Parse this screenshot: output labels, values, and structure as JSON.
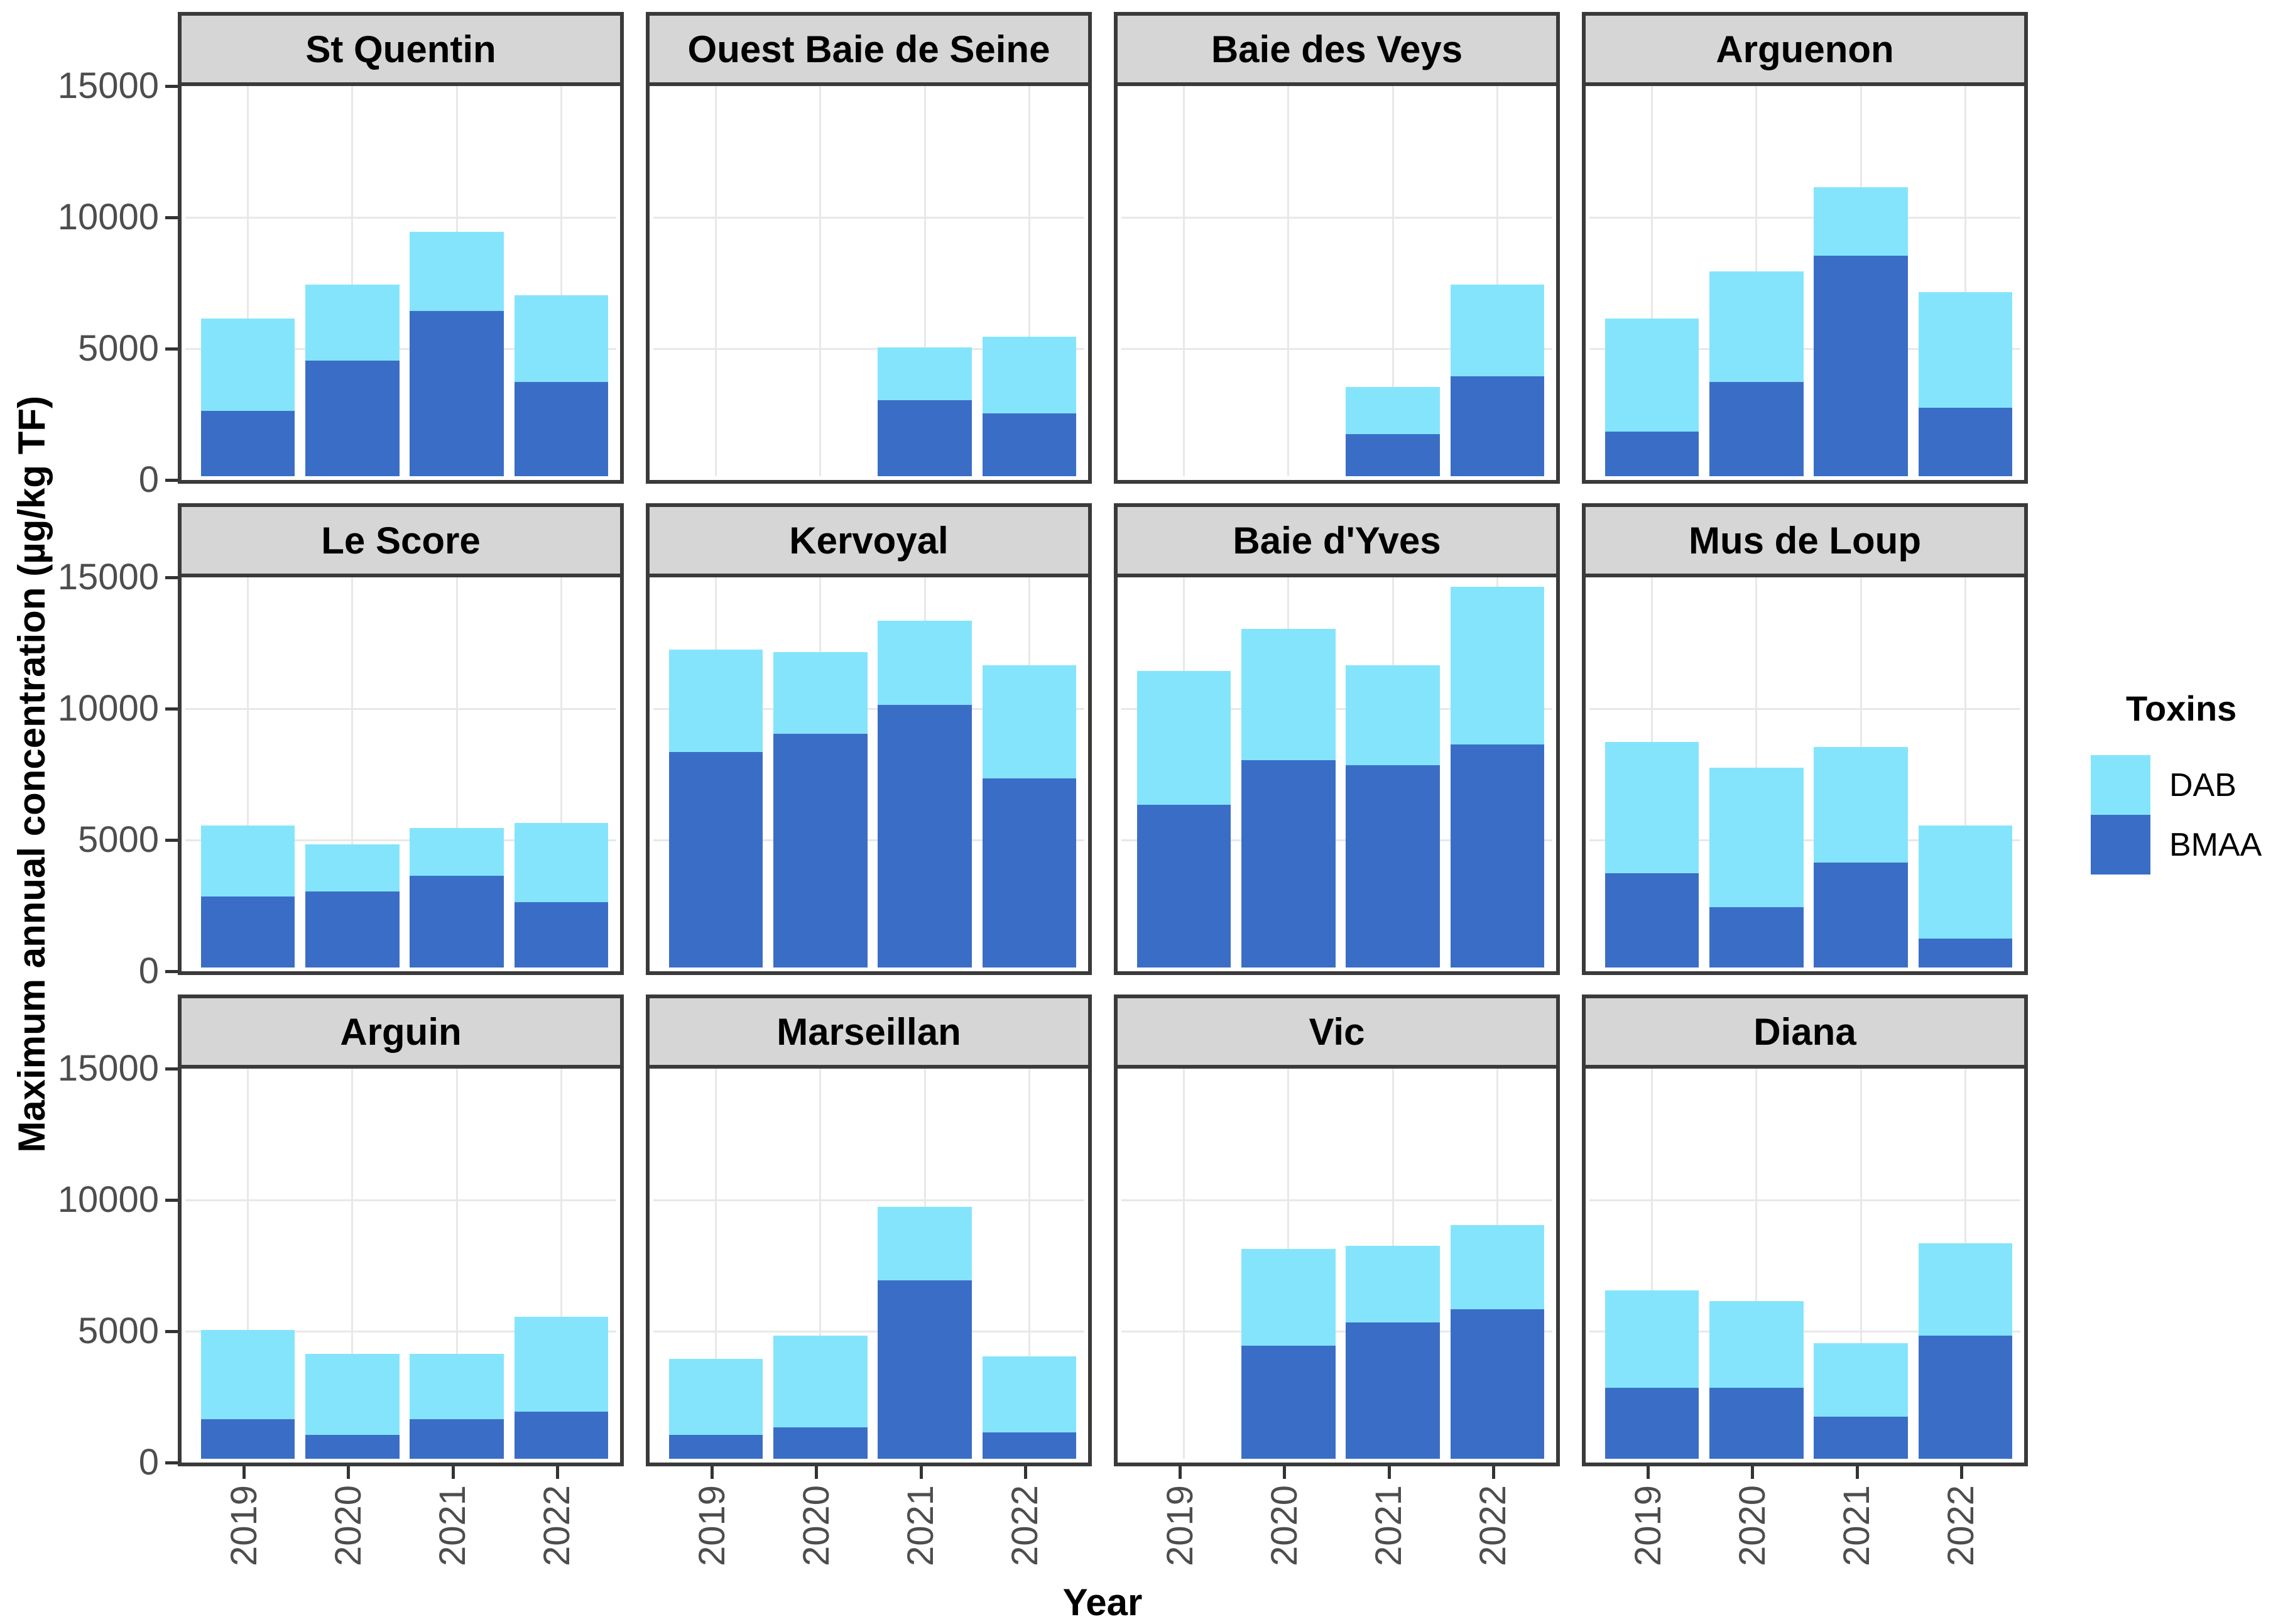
{
  "y_axis": {
    "title": "Maximum annual concentration (µg/kg TF)",
    "tick_labels": [
      "0",
      "5000",
      "10000",
      "15000"
    ],
    "tick_values": [
      0,
      5000,
      10000,
      15000
    ]
  },
  "x_axis": {
    "title": "Year",
    "tick_labels": [
      "2019",
      "2020",
      "2021",
      "2022"
    ]
  },
  "legend": {
    "title": "Toxins",
    "items": [
      {
        "label": "DAB",
        "color": "#84e4fc"
      },
      {
        "label": "BMAA",
        "color": "#3a6ec6"
      }
    ]
  },
  "style": {
    "dab_color": "#84e4fc",
    "bmaa_color": "#3a6ec6",
    "strip_background": "#d6d6d6",
    "panel_border": "#3a3a3a",
    "grid_color": "#e8e8e8",
    "axis_text_color": "#4d4d4d"
  },
  "chart_data": {
    "type": "bar",
    "stacked": true,
    "facet_layout": {
      "rows": 3,
      "cols": 4
    },
    "categories": [
      "2019",
      "2020",
      "2021",
      "2022"
    ],
    "xlabel": "Year",
    "ylabel": "Maximum annual concentration (µg/kg TF)",
    "ylim": [
      0,
      15000
    ],
    "yticks": [
      0,
      5000,
      10000,
      15000
    ],
    "grid": "major-light-gray-on-white",
    "legend_position": "right",
    "series_names": [
      "DAB",
      "BMAA"
    ],
    "facets": [
      {
        "title": "St Quentin",
        "BMAA": [
          2500,
          4400,
          6300,
          3600
        ],
        "DAB": [
          3500,
          2900,
          3000,
          3300
        ]
      },
      {
        "title": "Ouest Baie de Seine",
        "BMAA": [
          null,
          null,
          2900,
          2400
        ],
        "DAB": [
          null,
          null,
          2000,
          2900
        ]
      },
      {
        "title": "Baie des Veys",
        "BMAA": [
          null,
          null,
          1600,
          3800
        ],
        "DAB": [
          null,
          null,
          1800,
          3500
        ]
      },
      {
        "title": "Arguenon",
        "BMAA": [
          1700,
          3600,
          8400,
          2600
        ],
        "DAB": [
          4300,
          4200,
          2600,
          4400
        ]
      },
      {
        "title": "Le Score",
        "BMAA": [
          2700,
          2900,
          3500,
          2500
        ],
        "DAB": [
          2700,
          1800,
          1800,
          3000
        ]
      },
      {
        "title": "Kervoyal",
        "BMAA": [
          8200,
          8900,
          10000,
          7200
        ],
        "DAB": [
          3900,
          3100,
          3200,
          4300
        ]
      },
      {
        "title": "Baie d'Yves",
        "BMAA": [
          6200,
          7900,
          7700,
          8500
        ],
        "DAB": [
          5100,
          5000,
          3800,
          6000
        ]
      },
      {
        "title": "Mus de Loup",
        "BMAA": [
          3600,
          2300,
          4000,
          1100
        ],
        "DAB": [
          5000,
          5300,
          4400,
          4300
        ]
      },
      {
        "title": "Arguin",
        "BMAA": [
          1500,
          900,
          1500,
          1800
        ],
        "DAB": [
          3400,
          3100,
          2500,
          3600
        ]
      },
      {
        "title": "Marseillan",
        "BMAA": [
          900,
          1200,
          6800,
          1000
        ],
        "DAB": [
          2900,
          3500,
          2800,
          2900
        ]
      },
      {
        "title": "Vic",
        "BMAA": [
          null,
          4300,
          5200,
          5700
        ],
        "DAB": [
          null,
          3700,
          2900,
          3200
        ]
      },
      {
        "title": "Diana",
        "BMAA": [
          2700,
          2700,
          1600,
          4700
        ],
        "DAB": [
          3700,
          3300,
          2800,
          3500
        ]
      }
    ]
  }
}
